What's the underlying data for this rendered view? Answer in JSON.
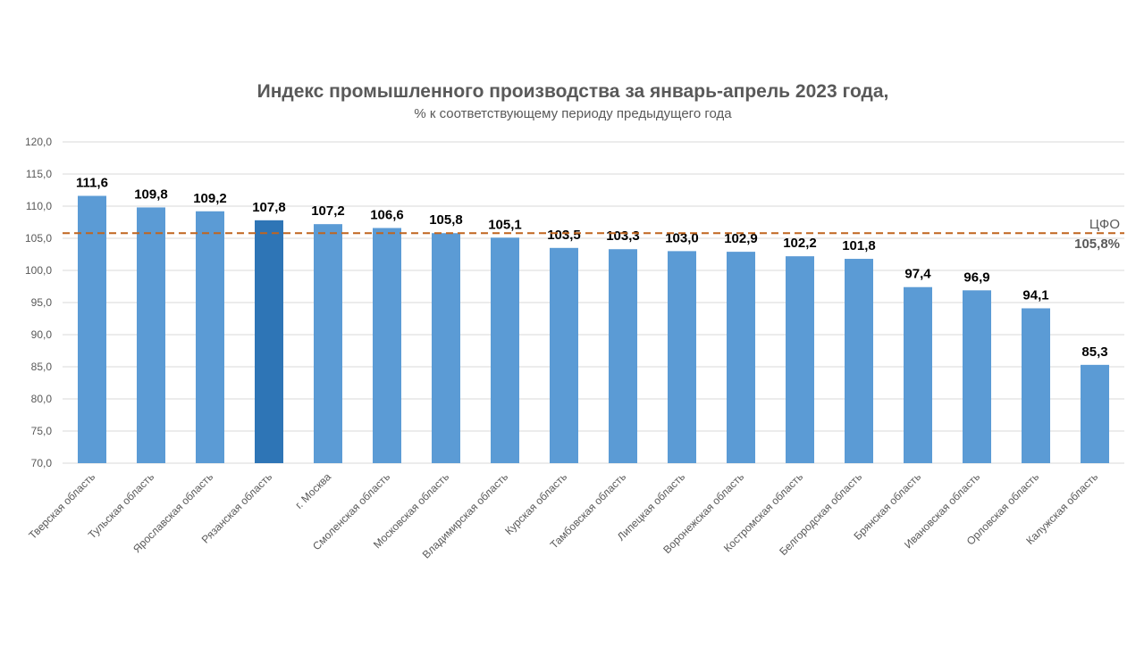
{
  "chart_data": {
    "type": "bar",
    "title": "Индекс промышленного производства за январь-апрель 2023 года,",
    "subtitle": "%  к соответствующему периоду предыдущего года",
    "xlabel": "",
    "ylabel": "",
    "ylim": [
      70,
      120
    ],
    "ytick_step": 5,
    "ytick_labels": [
      "70,0",
      "75,0",
      "80,0",
      "85,0",
      "90,0",
      "95,0",
      "100,0",
      "105,0",
      "110,0",
      "115,0",
      "120,0"
    ],
    "grid": true,
    "legend": "none",
    "categories": [
      "Тверская область",
      "Тульская область",
      "Ярославская область",
      "Рязанская область",
      "г. Москва",
      "Смоленская область",
      "Московская область",
      "Владимирская область",
      "Курская область",
      "Тамбовская область",
      "Липецкая область",
      "Воронежская область",
      "Костромская область",
      "Белгородская область",
      "Брянская область",
      "Ивановская область",
      "Орловская область",
      "Калужская область"
    ],
    "values": [
      111.6,
      109.8,
      109.2,
      107.8,
      107.2,
      106.6,
      105.8,
      105.1,
      103.5,
      103.3,
      103.0,
      102.9,
      102.2,
      101.8,
      97.4,
      96.9,
      94.1,
      85.3
    ],
    "value_labels": [
      "111,6",
      "109,8",
      "109,2",
      "107,8",
      "107,2",
      "106,6",
      "105,8",
      "105,1",
      "103,5",
      "103,3",
      "103,0",
      "102,9",
      "102,2",
      "101,8",
      "97,4",
      "96,9",
      "94,1",
      "85,3"
    ],
    "highlight_index": 3,
    "reference_line": {
      "value": 105.8,
      "label": "ЦФО",
      "value_label": "105,8%",
      "color": "#C0651F",
      "style": "dashed"
    },
    "colors": {
      "bar": "#5B9BD5",
      "bar_highlight": "#2E75B6",
      "grid": "#D9D9D9",
      "axis_text": "#595959",
      "title_text": "#595959",
      "value_text": "#000000"
    }
  }
}
